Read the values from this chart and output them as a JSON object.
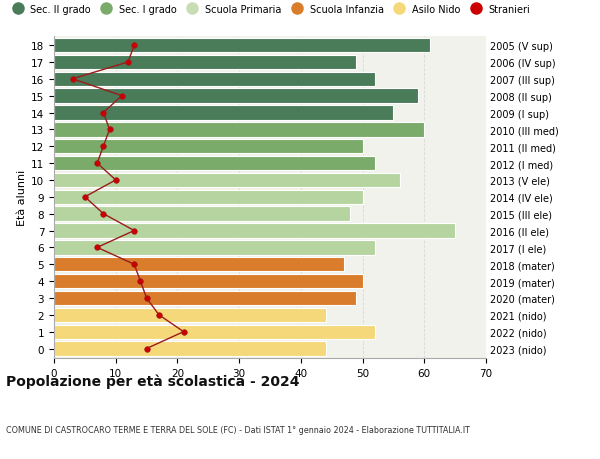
{
  "ages": [
    18,
    17,
    16,
    15,
    14,
    13,
    12,
    11,
    10,
    9,
    8,
    7,
    6,
    5,
    4,
    3,
    2,
    1,
    0
  ],
  "right_labels": [
    "2005 (V sup)",
    "2006 (IV sup)",
    "2007 (III sup)",
    "2008 (II sup)",
    "2009 (I sup)",
    "2010 (III med)",
    "2011 (II med)",
    "2012 (I med)",
    "2013 (V ele)",
    "2014 (IV ele)",
    "2015 (III ele)",
    "2016 (II ele)",
    "2017 (I ele)",
    "2018 (mater)",
    "2019 (mater)",
    "2020 (mater)",
    "2021 (nido)",
    "2022 (nido)",
    "2023 (nido)"
  ],
  "bar_values": [
    61,
    49,
    52,
    59,
    55,
    60,
    50,
    52,
    56,
    50,
    48,
    65,
    52,
    47,
    50,
    49,
    44,
    52,
    44
  ],
  "bar_colors": [
    "#4a7c59",
    "#4a7c59",
    "#4a7c59",
    "#4a7c59",
    "#4a7c59",
    "#7aab6a",
    "#7aab6a",
    "#7aab6a",
    "#b5d4a0",
    "#b5d4a0",
    "#b5d4a0",
    "#b5d4a0",
    "#b5d4a0",
    "#d97c2b",
    "#d97c2b",
    "#d97c2b",
    "#f5d87a",
    "#f5d87a",
    "#f5d87a"
  ],
  "stranieri_values": [
    13,
    12,
    3,
    11,
    8,
    9,
    8,
    7,
    10,
    5,
    8,
    13,
    7,
    13,
    14,
    15,
    17,
    21,
    15
  ],
  "legend_labels": [
    "Sec. II grado",
    "Sec. I grado",
    "Scuola Primaria",
    "Scuola Infanzia",
    "Asilo Nido",
    "Stranieri"
  ],
  "legend_colors": [
    "#4a7c59",
    "#7aab6a",
    "#c8ddb4",
    "#d97c2b",
    "#f5d87a",
    "#cc0000"
  ],
  "title": "Popolazione per età scolastica - 2024",
  "subtitle": "COMUNE DI CASTROCARO TERME E TERRA DEL SOLE (FC) - Dati ISTAT 1° gennaio 2024 - Elaborazione TUTTITALIA.IT",
  "ylabel_left": "Età alunni",
  "xlim": [
    0,
    70
  ],
  "xticks": [
    0,
    10,
    20,
    30,
    40,
    50,
    60,
    70
  ],
  "plot_bg": "#f2f2ec",
  "fig_bg": "#ffffff",
  "grid_color": "#d8d8d8"
}
